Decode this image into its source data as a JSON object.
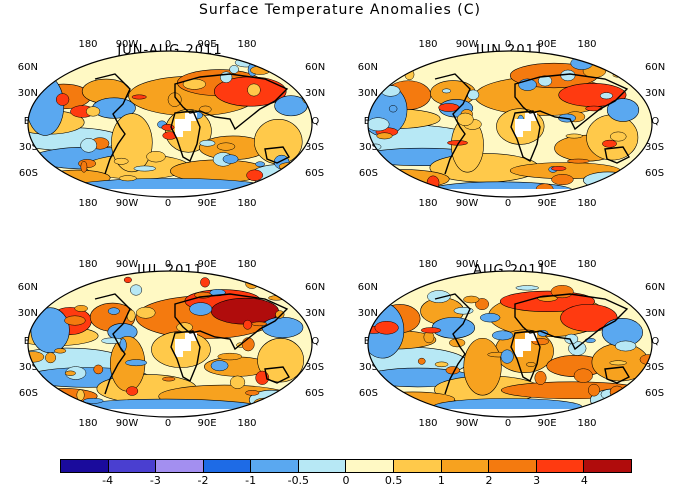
{
  "title": "Surface Temperature Anomalies (C)",
  "panels": [
    {
      "title": "JUN-AUG 2011",
      "warm_bias": 0
    },
    {
      "title": "JUN 2011",
      "warm_bias": 1
    },
    {
      "title": "JUL 2011",
      "warm_bias": 2
    },
    {
      "title": "AUG 2011",
      "warm_bias": 3
    }
  ],
  "lon_labels": [
    "180",
    "90W",
    "0",
    "90E",
    "180"
  ],
  "lat_labels": [
    "60N",
    "30N",
    "EQ",
    "30S",
    "60S"
  ],
  "colorbar": {
    "colors": [
      "#1a0b9c",
      "#4a3fd0",
      "#a38ff0",
      "#1e6be6",
      "#5aa8f0",
      "#b7e8f5",
      "#fff9c4",
      "#ffc94a",
      "#f7a21f",
      "#f47a0f",
      "#ff3a10",
      "#b00c0c"
    ],
    "tick_labels": [
      "-4",
      "-3",
      "-2",
      "-1",
      "-0.5",
      "0",
      "0.5",
      "1",
      "2",
      "3",
      "4"
    ]
  }
}
